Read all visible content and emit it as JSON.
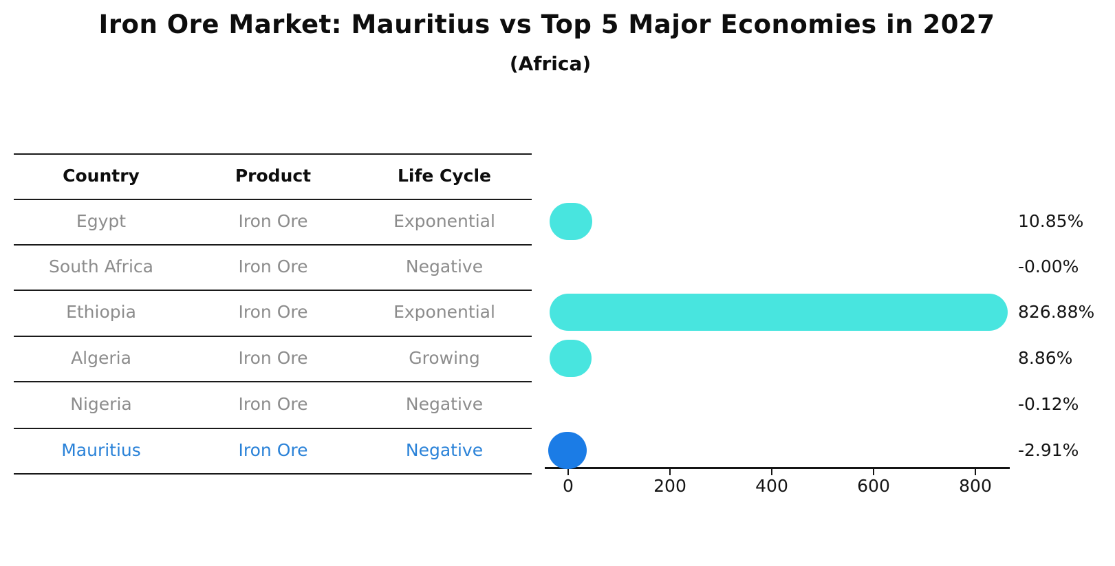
{
  "title": "Iron Ore Market: Mauritius vs Top 5 Major Economies in 2027",
  "subtitle": "(Africa)",
  "colors": {
    "bar": "#48e5df",
    "highlight_bar": "#1b7ce6",
    "highlight_text": "#2a82d8",
    "row_text": "#8c8c8c",
    "header_text": "#0d0d0d",
    "axis": "#141414"
  },
  "table": {
    "headers": [
      "Country",
      "Product",
      "Life Cycle"
    ],
    "rows": [
      {
        "country": "Egypt",
        "product": "Iron Ore",
        "life_cycle": "Exponential",
        "highlight": false
      },
      {
        "country": "South Africa",
        "product": "Iron Ore",
        "life_cycle": "Negative",
        "highlight": false
      },
      {
        "country": "Ethiopia",
        "product": "Iron Ore",
        "life_cycle": "Exponential",
        "highlight": false
      },
      {
        "country": "Algeria",
        "product": "Iron Ore",
        "life_cycle": "Growing",
        "highlight": false
      },
      {
        "country": "Nigeria",
        "product": "Iron Ore",
        "life_cycle": "Negative",
        "highlight": false
      },
      {
        "country": "Mauritius",
        "product": "Iron Ore",
        "life_cycle": "Negative",
        "highlight": true
      }
    ]
  },
  "chart_data": {
    "type": "bar",
    "orientation": "horizontal",
    "title": "Iron Ore Market: Mauritius vs Top 5 Major Economies in 2027",
    "subtitle": "(Africa)",
    "categories": [
      "Egypt",
      "South Africa",
      "Ethiopia",
      "Algeria",
      "Nigeria",
      "Mauritius"
    ],
    "values": [
      10.85,
      -0.0,
      826.88,
      8.86,
      -0.12,
      -2.91
    ],
    "value_labels": [
      "10.85%",
      "-0.00%",
      "826.88%",
      "8.86%",
      "-0.12%",
      "-2.91%"
    ],
    "x_ticks": [
      0,
      200,
      400,
      600,
      800
    ],
    "xlim": [
      -46,
      868
    ],
    "grid": false,
    "legend": false,
    "highlight_category": "Mauritius",
    "bar_color": "#48e5df",
    "highlight_color": "#1b7ce6"
  }
}
